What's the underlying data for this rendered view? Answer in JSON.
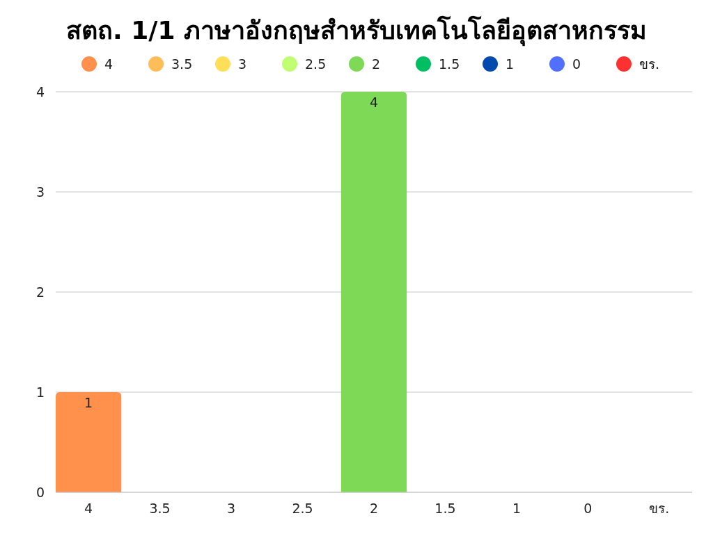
{
  "chart_data": {
    "type": "bar",
    "title": "สตถ. 1/1 ภาษาอังกฤษสำหรับเทคโนโลยีอุตสาหกรรม",
    "categories": [
      "4",
      "3.5",
      "3",
      "2.5",
      "2",
      "1.5",
      "1",
      "0",
      "ขร."
    ],
    "stacked": true,
    "series": [
      {
        "name": "4",
        "color": "#ff914d",
        "values": [
          1,
          null,
          null,
          null,
          null,
          null,
          null,
          null,
          null
        ],
        "value_labels": [
          "1",
          null,
          null,
          null,
          null,
          null,
          null,
          null,
          null
        ]
      },
      {
        "name": "3.5",
        "color": "#ffbd59",
        "values": [
          null,
          0,
          null,
          null,
          null,
          null,
          null,
          null,
          null
        ]
      },
      {
        "name": "3",
        "color": "#ffde59",
        "values": [
          null,
          null,
          0,
          null,
          null,
          null,
          null,
          null,
          null
        ]
      },
      {
        "name": "2.5",
        "color": "#c1ff72",
        "values": [
          null,
          null,
          null,
          0,
          null,
          null,
          null,
          null,
          null
        ]
      },
      {
        "name": "2",
        "color": "#7ed957",
        "values": [
          null,
          null,
          null,
          null,
          4,
          null,
          null,
          null,
          null
        ],
        "value_labels": [
          null,
          null,
          null,
          null,
          "4",
          null,
          null,
          null,
          null
        ]
      },
      {
        "name": "1.5",
        "color": "#00bf63",
        "values": [
          null,
          null,
          null,
          null,
          null,
          0,
          null,
          null,
          null
        ]
      },
      {
        "name": "1",
        "color": "#004aad",
        "values": [
          null,
          null,
          null,
          null,
          null,
          null,
          0,
          null,
          null
        ]
      },
      {
        "name": "0",
        "color": "#5170ff",
        "values": [
          null,
          null,
          null,
          null,
          null,
          null,
          null,
          0,
          null
        ]
      },
      {
        "name": "ขร.",
        "color": "#ff3131",
        "values": [
          null,
          null,
          null,
          null,
          null,
          null,
          null,
          null,
          0
        ]
      }
    ],
    "ylim": [
      0,
      4
    ],
    "yticks": [
      0,
      1,
      2,
      3,
      4
    ],
    "grid": "y",
    "legend": "top"
  }
}
